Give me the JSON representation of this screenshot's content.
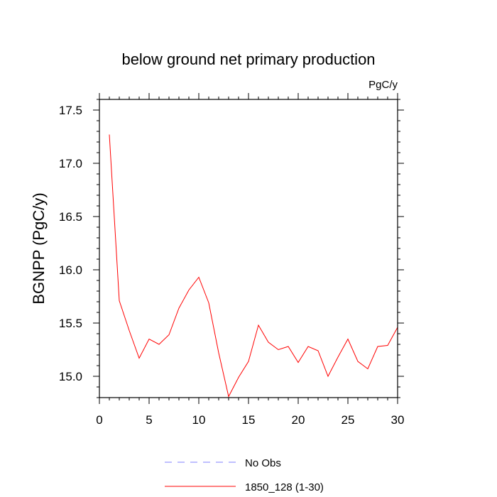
{
  "chart_data": {
    "type": "line",
    "title": "below ground net primary production",
    "units_label": "PgC/y",
    "ylabel": "BGNPP  (PgC/y)",
    "xlabel": "",
    "xlim": [
      0,
      30
    ],
    "ylim": [
      14.8,
      17.6
    ],
    "x_major_ticks": [
      0,
      5,
      10,
      15,
      20,
      25,
      30
    ],
    "x_tick_labels": [
      "0",
      "5",
      "10",
      "15",
      "20",
      "25",
      "30"
    ],
    "x_minor_step": 1,
    "y_major_ticks": [
      15.0,
      15.5,
      16.0,
      16.5,
      17.0,
      17.5
    ],
    "y_tick_labels": [
      "15.0",
      "15.5",
      "16.0",
      "16.5",
      "17.0",
      "17.5"
    ],
    "y_minor_step": 0.1,
    "grid": false,
    "legend_position": "bottom-center",
    "series": [
      {
        "name": "1850_128 (1-30)",
        "color": "#ff0000",
        "style": "solid",
        "x": [
          1,
          2,
          3,
          4,
          5,
          6,
          7,
          8,
          9,
          10,
          11,
          12,
          13,
          14,
          15,
          16,
          17,
          18,
          19,
          20,
          21,
          22,
          23,
          24,
          25,
          26,
          27,
          28,
          29,
          30
        ],
        "values": [
          17.27,
          15.71,
          15.43,
          15.17,
          15.35,
          15.3,
          15.39,
          15.64,
          15.81,
          15.93,
          15.69,
          15.22,
          14.81,
          14.99,
          15.14,
          15.48,
          15.32,
          15.25,
          15.28,
          15.13,
          15.28,
          15.24,
          15.0,
          15.18,
          15.35,
          15.14,
          15.07,
          15.28,
          15.29,
          15.46
        ]
      }
    ],
    "legend": [
      {
        "label": "No Obs",
        "color": "#8080ff",
        "style": "dashed"
      },
      {
        "label": "1850_128 (1-30)",
        "color": "#ff0000",
        "style": "solid"
      }
    ]
  }
}
